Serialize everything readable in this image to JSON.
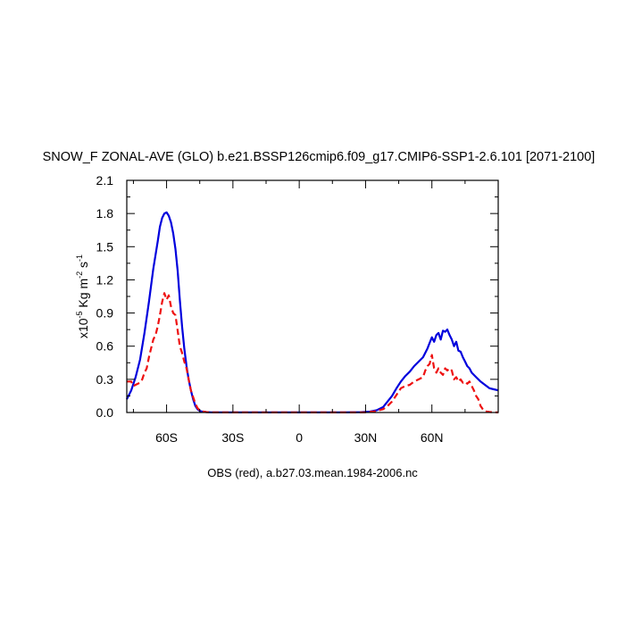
{
  "chart_data": {
    "type": "line",
    "title": "SNOW_F ZONAL-AVE (GLO) b.e21.BSSP126cmip6.f09_g17.CMIP6-SSP1-2.6.101 [2071-2100]",
    "xlabel": "OBS (red), a.b27.03.mean.1984-2006.nc",
    "ylabel": {
      "prefix": "x10",
      "exponent": "-5",
      "unit1": " Kg m",
      "unit1_exp": "-2",
      "unit2": " s",
      "unit2_exp": "-1"
    },
    "xlim": [
      -78,
      90
    ],
    "ylim": [
      0,
      2.1
    ],
    "x_ticks": [
      {
        "value": -60,
        "label": "60S"
      },
      {
        "value": -30,
        "label": "30S"
      },
      {
        "value": 0,
        "label": "0"
      },
      {
        "value": 30,
        "label": "30N"
      },
      {
        "value": 60,
        "label": "60N"
      }
    ],
    "x_minor_ticks": [
      -75,
      -45,
      -15,
      15,
      45,
      75
    ],
    "y_ticks": [
      {
        "value": 0,
        "label": "0.0"
      },
      {
        "value": 0.3,
        "label": "0.3"
      },
      {
        "value": 0.6,
        "label": "0.6"
      },
      {
        "value": 0.9,
        "label": "0.9"
      },
      {
        "value": 1.2,
        "label": "1.2"
      },
      {
        "value": 1.5,
        "label": "1.5"
      },
      {
        "value": 1.8,
        "label": "1.8"
      },
      {
        "value": 2.1,
        "label": "2.1"
      }
    ],
    "y_minor_ticks": [
      0.15,
      0.45,
      0.75,
      1.05,
      1.35,
      1.65,
      1.95
    ],
    "grid": false,
    "series": [
      {
        "color": "#0000dd",
        "dash": "solid",
        "x": [
          -78,
          -76,
          -74,
          -72,
          -70,
          -68,
          -66,
          -64,
          -63,
          -62,
          -61,
          -60,
          -59,
          -58,
          -57,
          -56,
          -55,
          -54,
          -53,
          -52,
          -51,
          -50,
          -49,
          -48,
          -47,
          -46,
          -45,
          -44,
          -42,
          -40,
          -30,
          -20,
          -10,
          0,
          10,
          20,
          28,
          32,
          35,
          38,
          40,
          42,
          44,
          46,
          48,
          50,
          52,
          54,
          56,
          58,
          59,
          60,
          61,
          62,
          63,
          64,
          65,
          66,
          67,
          68,
          69,
          70,
          71,
          72,
          73,
          74,
          75,
          76,
          77,
          78,
          80,
          82,
          84,
          86,
          88,
          90
        ],
        "y": [
          0.12,
          0.2,
          0.32,
          0.48,
          0.72,
          1.0,
          1.3,
          1.55,
          1.68,
          1.76,
          1.8,
          1.81,
          1.78,
          1.72,
          1.62,
          1.48,
          1.28,
          1.02,
          0.78,
          0.58,
          0.42,
          0.3,
          0.2,
          0.12,
          0.06,
          0.03,
          0.015,
          0.008,
          0.004,
          0.002,
          0.001,
          0.001,
          0.001,
          0.001,
          0.001,
          0.001,
          0.003,
          0.008,
          0.02,
          0.05,
          0.1,
          0.15,
          0.22,
          0.28,
          0.33,
          0.37,
          0.42,
          0.46,
          0.5,
          0.58,
          0.63,
          0.68,
          0.64,
          0.7,
          0.72,
          0.66,
          0.74,
          0.73,
          0.75,
          0.7,
          0.66,
          0.6,
          0.64,
          0.56,
          0.55,
          0.5,
          0.46,
          0.42,
          0.4,
          0.36,
          0.32,
          0.28,
          0.25,
          0.22,
          0.21,
          0.2
        ]
      },
      {
        "color": "#ee1111",
        "dash": "dashed",
        "x": [
          -78,
          -76,
          -75,
          -74,
          -73,
          -72,
          -71,
          -70,
          -69,
          -68,
          -67,
          -66,
          -65,
          -64,
          -63,
          -62,
          -61,
          -60,
          -59,
          -58,
          -57,
          -56,
          -55,
          -54,
          -53,
          -52,
          -51,
          -50,
          -49,
          -48,
          -47,
          -46,
          -45,
          -44,
          -42,
          -40,
          -30,
          -20,
          -10,
          0,
          10,
          20,
          30,
          34,
          38,
          40,
          42,
          44,
          46,
          48,
          50,
          52,
          54,
          56,
          57,
          58,
          59,
          60,
          61,
          62,
          63,
          64,
          65,
          66,
          67,
          68,
          69,
          70,
          71,
          72,
          73,
          74,
          75,
          76,
          77,
          78,
          79,
          80,
          81,
          82,
          83,
          84,
          86,
          88,
          90
        ],
        "y": [
          0.28,
          0.28,
          0.24,
          0.25,
          0.26,
          0.27,
          0.3,
          0.36,
          0.4,
          0.5,
          0.58,
          0.66,
          0.7,
          0.78,
          0.88,
          1.0,
          1.08,
          1.02,
          1.06,
          0.96,
          0.9,
          0.88,
          0.74,
          0.6,
          0.54,
          0.46,
          0.4,
          0.3,
          0.2,
          0.14,
          0.08,
          0.04,
          0.02,
          0.01,
          0.004,
          0.002,
          0.001,
          0.001,
          0.001,
          0.001,
          0.001,
          0.001,
          0.002,
          0.01,
          0.03,
          0.06,
          0.1,
          0.16,
          0.22,
          0.24,
          0.25,
          0.28,
          0.3,
          0.32,
          0.38,
          0.42,
          0.44,
          0.52,
          0.4,
          0.36,
          0.4,
          0.36,
          0.34,
          0.4,
          0.38,
          0.4,
          0.38,
          0.3,
          0.32,
          0.28,
          0.3,
          0.27,
          0.28,
          0.26,
          0.28,
          0.24,
          0.2,
          0.15,
          0.12,
          0.06,
          0.03,
          0.01,
          0.005,
          0.002,
          0.001
        ]
      }
    ]
  },
  "colors": {
    "model_line": "#0000dd",
    "obs_line": "#ee1111",
    "axis": "#000000"
  }
}
